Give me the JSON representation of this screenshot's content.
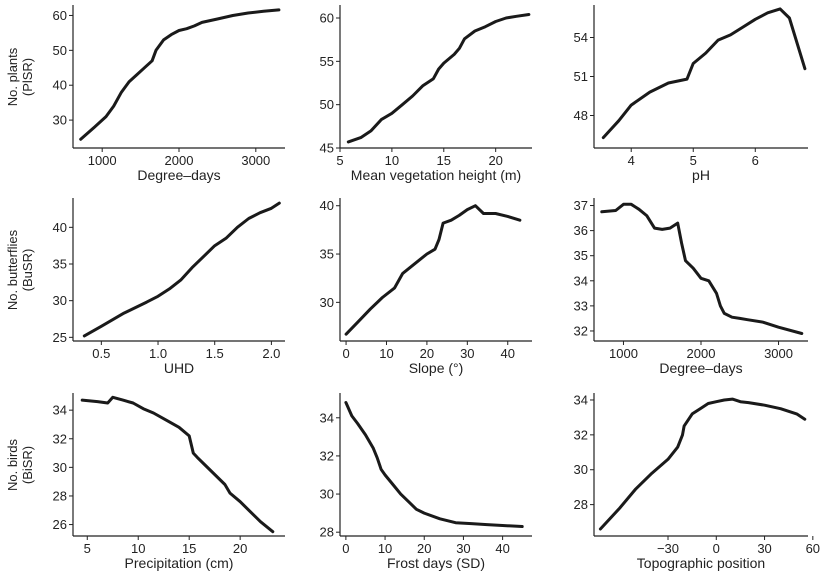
{
  "row_labels": [
    [
      "No. plants",
      "(PlSR)"
    ],
    [
      "No. butterflies",
      "(BuSR)"
    ],
    [
      "No. birds",
      "(BiSR)"
    ]
  ],
  "colors": {
    "line": "#1a1a1a",
    "axis": "#222222",
    "background": "#ffffff"
  },
  "chart_data": [
    {
      "type": "line",
      "xlabel": "Degree–days",
      "xlim": [
        620,
        3380
      ],
      "ylim": [
        22,
        63
      ],
      "xticks": [
        1000,
        2000,
        3000
      ],
      "xtick_labels": [
        "1000",
        "2000",
        "3000"
      ],
      "yticks": [
        30,
        40,
        50,
        60
      ],
      "ytick_labels": [
        "30",
        "40",
        "50",
        "60"
      ],
      "x": [
        720,
        900,
        1050,
        1150,
        1250,
        1350,
        1450,
        1550,
        1650,
        1700,
        1800,
        1900,
        2000,
        2100,
        2200,
        2300,
        2500,
        2700,
        2900,
        3100,
        3300
      ],
      "y": [
        24.5,
        28,
        31,
        34,
        38,
        41,
        43,
        45,
        47,
        50,
        53,
        54.5,
        55.7,
        56.2,
        57,
        58,
        59,
        60,
        60.7,
        61.2,
        61.6
      ]
    },
    {
      "type": "line",
      "xlabel": "Mean vegetation height (m)",
      "xlim": [
        5,
        23.5
      ],
      "ylim": [
        45,
        61.5
      ],
      "xticks": [
        5,
        10,
        15,
        20
      ],
      "xtick_labels": [
        "5",
        "10",
        "15",
        "20"
      ],
      "yticks": [
        45,
        50,
        55,
        60
      ],
      "ytick_labels": [
        "45",
        "50",
        "55",
        "60"
      ],
      "x": [
        5.8,
        7,
        8,
        9,
        10,
        11,
        12,
        13,
        14,
        14.5,
        15,
        16,
        16.5,
        17,
        18,
        19,
        20,
        21,
        22,
        23.2
      ],
      "y": [
        45.7,
        46.2,
        47,
        48.3,
        49,
        50,
        51,
        52.2,
        53,
        54.1,
        54.8,
        55.8,
        56.5,
        57.6,
        58.5,
        59,
        59.6,
        60,
        60.2,
        60.4
      ]
    },
    {
      "type": "line",
      "xlabel": "pH",
      "xlim": [
        3.4,
        6.85
      ],
      "ylim": [
        45.5,
        56.5
      ],
      "xticks": [
        4,
        5,
        6
      ],
      "xtick_labels": [
        "4",
        "5",
        "6"
      ],
      "yticks": [
        48,
        51,
        54
      ],
      "ytick_labels": [
        "48",
        "51",
        "54"
      ],
      "x": [
        3.55,
        3.8,
        4.0,
        4.3,
        4.6,
        4.9,
        5.0,
        5.2,
        5.4,
        5.6,
        5.8,
        6.0,
        6.2,
        6.4,
        6.55,
        6.8
      ],
      "y": [
        46.3,
        47.6,
        48.8,
        49.8,
        50.5,
        50.8,
        52,
        52.8,
        53.8,
        54.2,
        54.8,
        55.4,
        55.9,
        56.2,
        55.5,
        51.6
      ]
    },
    {
      "type": "line",
      "xlabel": "UHD",
      "xlim": [
        0.25,
        2.12
      ],
      "ylim": [
        24.5,
        44
      ],
      "xticks": [
        0.5,
        1.0,
        1.5,
        2.0
      ],
      "xtick_labels": [
        "0.5",
        "1.0",
        "1.5",
        "2.0"
      ],
      "yticks": [
        25,
        30,
        35,
        40
      ],
      "ytick_labels": [
        "25",
        "30",
        "35",
        "40"
      ],
      "x": [
        0.35,
        0.5,
        0.7,
        0.9,
        1.0,
        1.1,
        1.2,
        1.3,
        1.4,
        1.5,
        1.6,
        1.7,
        1.8,
        1.9,
        2.0,
        2.07
      ],
      "y": [
        25.2,
        26.5,
        28.3,
        29.8,
        30.6,
        31.6,
        32.8,
        34.5,
        36,
        37.5,
        38.5,
        40,
        41.2,
        42,
        42.6,
        43.3
      ]
    },
    {
      "type": "line",
      "xlabel": "Slope (°)",
      "xlim": [
        -1.5,
        46
      ],
      "ylim": [
        26,
        40.8
      ],
      "xticks": [
        0,
        10,
        20,
        30,
        40
      ],
      "xtick_labels": [
        "0",
        "10",
        "20",
        "30",
        "40"
      ],
      "yticks": [
        30,
        35,
        40
      ],
      "ytick_labels": [
        "30",
        "35",
        "40"
      ],
      "x": [
        0,
        3,
        6,
        9,
        12,
        14,
        17,
        20,
        22,
        23,
        24,
        26,
        28,
        30,
        32,
        34,
        37,
        40,
        43
      ],
      "y": [
        26.7,
        28,
        29.3,
        30.5,
        31.5,
        33,
        34,
        35,
        35.5,
        36.5,
        38.2,
        38.5,
        39,
        39.6,
        40,
        39.2,
        39.2,
        38.9,
        38.5
      ]
    },
    {
      "type": "line",
      "xlabel": "Degree–days",
      "xlim": [
        620,
        3380
      ],
      "ylim": [
        31.6,
        37.3
      ],
      "xticks": [
        1000,
        2000,
        3000
      ],
      "xtick_labels": [
        "1000",
        "2000",
        "3000"
      ],
      "yticks": [
        32,
        33,
        34,
        35,
        36,
        37
      ],
      "ytick_labels": [
        "32",
        "33",
        "34",
        "35",
        "36",
        "37"
      ],
      "x": [
        720,
        900,
        1000,
        1100,
        1200,
        1300,
        1400,
        1500,
        1600,
        1700,
        1750,
        1800,
        1900,
        2000,
        2100,
        2200,
        2250,
        2300,
        2400,
        2500,
        2600,
        2800,
        3000,
        3300
      ],
      "y": [
        36.75,
        36.8,
        37.05,
        37.05,
        36.85,
        36.6,
        36.1,
        36.05,
        36.1,
        36.3,
        35.5,
        34.8,
        34.5,
        34.1,
        34,
        33.5,
        33,
        32.7,
        32.55,
        32.5,
        32.45,
        32.35,
        32.15,
        31.9
      ]
    },
    {
      "type": "line",
      "xlabel": "Precipitation (cm)",
      "xlim": [
        3.6,
        24.4
      ],
      "ylim": [
        25.2,
        35.2
      ],
      "xticks": [
        5,
        10,
        15,
        20
      ],
      "xtick_labels": [
        "5",
        "10",
        "15",
        "20"
      ],
      "yticks": [
        26,
        28,
        30,
        32,
        34
      ],
      "ytick_labels": [
        "26",
        "28",
        "30",
        "32",
        "34"
      ],
      "x": [
        4.5,
        6,
        7,
        7.5,
        8.5,
        9.5,
        10.5,
        11.5,
        13,
        14,
        15,
        15.4,
        15.8,
        16.5,
        17.5,
        18.5,
        19,
        20,
        21,
        22,
        23.2
      ],
      "y": [
        34.7,
        34.6,
        34.5,
        34.9,
        34.7,
        34.5,
        34.1,
        33.8,
        33.2,
        32.8,
        32.2,
        31,
        30.7,
        30.2,
        29.5,
        28.8,
        28.2,
        27.6,
        26.9,
        26.2,
        25.5
      ]
    },
    {
      "type": "line",
      "xlabel": "Frost days (SD)",
      "xlim": [
        -1.5,
        47.5
      ],
      "ylim": [
        27.8,
        35.3
      ],
      "xticks": [
        0,
        10,
        20,
        30,
        40
      ],
      "xtick_labels": [
        "0",
        "10",
        "20",
        "30",
        "40"
      ],
      "yticks": [
        28,
        30,
        32,
        34
      ],
      "ytick_labels": [
        "28",
        "30",
        "32",
        "34"
      ],
      "x": [
        0,
        1.5,
        3,
        5,
        7,
        8,
        9,
        10,
        12,
        14,
        16,
        18,
        20,
        24,
        28,
        32,
        36,
        40,
        45
      ],
      "y": [
        34.8,
        34.1,
        33.7,
        33.1,
        32.4,
        31.9,
        31.3,
        31,
        30.5,
        30,
        29.6,
        29.2,
        29,
        28.7,
        28.5,
        28.45,
        28.4,
        28.35,
        28.3
      ]
    },
    {
      "type": "line",
      "xlabel": "Topographic position",
      "xlim": [
        -76,
        57
      ],
      "ylim": [
        26.2,
        34.4
      ],
      "xticks": [
        -30,
        0,
        30,
        60
      ],
      "xtick_labels": [
        "−30",
        "0",
        "30",
        "60"
      ],
      "yticks": [
        28,
        30,
        32,
        34
      ],
      "ytick_labels": [
        "28",
        "30",
        "32",
        "34"
      ],
      "x": [
        -72,
        -60,
        -50,
        -40,
        -30,
        -24,
        -21,
        -20,
        -15,
        -10,
        -5,
        0,
        5,
        10,
        15,
        20,
        30,
        40,
        50,
        55
      ],
      "y": [
        26.6,
        27.8,
        28.9,
        29.8,
        30.6,
        31.3,
        32,
        32.5,
        33.2,
        33.5,
        33.8,
        33.9,
        34,
        34.05,
        33.9,
        33.85,
        33.7,
        33.5,
        33.2,
        32.9
      ]
    }
  ]
}
